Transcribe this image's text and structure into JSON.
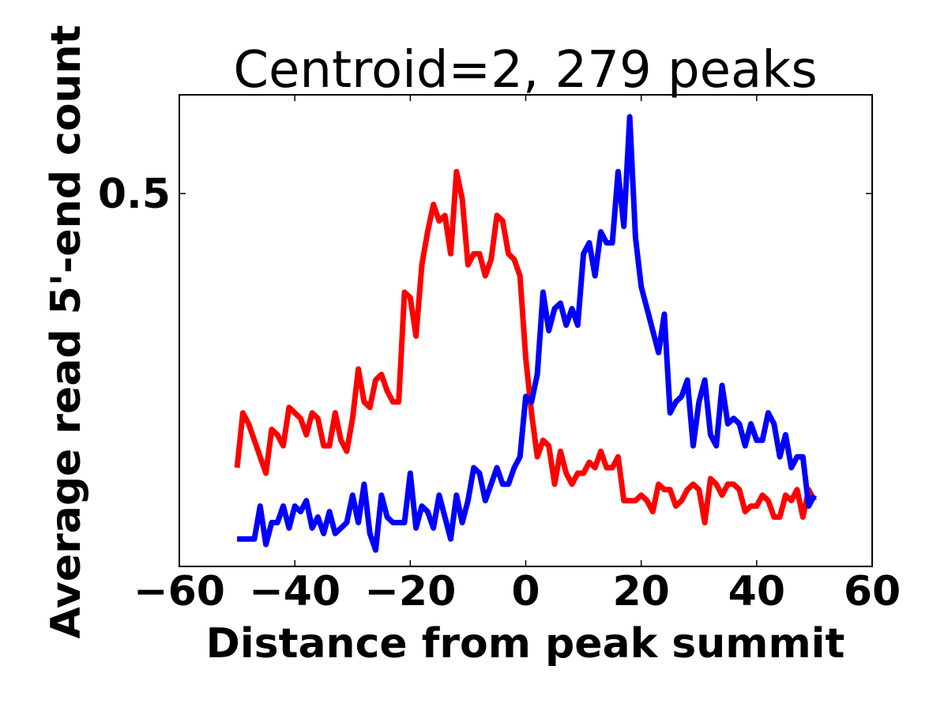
{
  "chart_data": {
    "type": "line",
    "title": "Centroid=2, 279 peaks",
    "xlabel": "Distance from peak summit",
    "ylabel": "Average read 5'-end count",
    "xlim": [
      -60,
      60
    ],
    "ylim": [
      -0.18,
      0.68
    ],
    "x_ticks": [
      -60,
      -40,
      -20,
      0,
      20,
      40,
      60
    ],
    "x_tick_labels": [
      "−60",
      "−40",
      "−20",
      "0",
      "20",
      "40",
      "60"
    ],
    "y_ticks": [
      0.5
    ],
    "y_tick_labels": [
      "0.5"
    ],
    "grid": false,
    "legend": "none",
    "x": [
      -50,
      -49,
      -48,
      -47,
      -46,
      -45,
      -44,
      -43,
      -42,
      -41,
      -40,
      -39,
      -38,
      -37,
      -36,
      -35,
      -34,
      -33,
      -32,
      -31,
      -30,
      -29,
      -28,
      -27,
      -26,
      -25,
      -24,
      -23,
      -22,
      -21,
      -20,
      -19,
      -18,
      -17,
      -16,
      -15,
      -14,
      -13,
      -12,
      -11,
      -10,
      -9,
      -8,
      -7,
      -6,
      -5,
      -4,
      -3,
      -2,
      -1,
      0,
      1,
      2,
      3,
      4,
      5,
      6,
      7,
      8,
      9,
      10,
      11,
      12,
      13,
      14,
      15,
      16,
      17,
      18,
      19,
      20,
      21,
      22,
      23,
      24,
      25,
      26,
      27,
      28,
      29,
      30,
      31,
      32,
      33,
      34,
      35,
      36,
      37,
      38,
      39,
      40,
      41,
      42,
      43,
      44,
      45,
      46,
      47,
      48,
      49,
      50
    ],
    "series": [
      {
        "color": "#ff0000",
        "values": [
          0.0,
          0.1,
          0.08,
          0.05,
          0.02,
          -0.01,
          0.07,
          0.06,
          0.04,
          0.11,
          0.1,
          0.09,
          0.06,
          0.1,
          0.09,
          0.04,
          0.04,
          0.1,
          0.05,
          0.03,
          0.09,
          0.18,
          0.12,
          0.11,
          0.16,
          0.17,
          0.14,
          0.12,
          0.12,
          0.32,
          0.31,
          0.24,
          0.37,
          0.43,
          0.48,
          0.45,
          0.46,
          0.39,
          0.54,
          0.49,
          0.37,
          0.39,
          0.39,
          0.35,
          0.38,
          0.46,
          0.45,
          0.39,
          0.38,
          0.35,
          0.2,
          0.1,
          0.02,
          0.05,
          0.04,
          -0.03,
          0.03,
          -0.01,
          -0.03,
          -0.01,
          -0.01,
          0.01,
          0.0,
          0.03,
          0.0,
          0.0,
          0.02,
          -0.06,
          -0.06,
          -0.06,
          -0.05,
          -0.06,
          -0.08,
          -0.03,
          -0.04,
          -0.04,
          -0.07,
          -0.06,
          -0.04,
          -0.03,
          -0.04,
          -0.1,
          -0.02,
          -0.03,
          -0.05,
          -0.03,
          -0.03,
          -0.04,
          -0.08,
          -0.07,
          -0.07,
          -0.05,
          -0.06,
          -0.09,
          -0.09,
          -0.05,
          -0.06,
          -0.04,
          -0.09,
          -0.04,
          -0.06
        ]
      },
      {
        "color": "#0000ff",
        "values": [
          -0.13,
          -0.13,
          -0.13,
          -0.13,
          -0.07,
          -0.14,
          -0.1,
          -0.1,
          -0.07,
          -0.11,
          -0.07,
          -0.08,
          -0.06,
          -0.11,
          -0.09,
          -0.12,
          -0.08,
          -0.12,
          -0.11,
          -0.1,
          -0.05,
          -0.1,
          -0.03,
          -0.12,
          -0.15,
          -0.05,
          -0.09,
          -0.1,
          -0.1,
          -0.1,
          -0.01,
          -0.11,
          -0.07,
          -0.08,
          -0.11,
          -0.05,
          -0.09,
          -0.13,
          -0.05,
          -0.1,
          -0.06,
          0.0,
          -0.01,
          -0.06,
          -0.03,
          0.0,
          -0.03,
          -0.03,
          0.0,
          0.02,
          0.13,
          0.12,
          0.17,
          0.32,
          0.25,
          0.29,
          0.3,
          0.26,
          0.29,
          0.26,
          0.39,
          0.41,
          0.35,
          0.43,
          0.41,
          0.41,
          0.54,
          0.44,
          0.64,
          0.42,
          0.33,
          0.29,
          0.25,
          0.21,
          0.28,
          0.1,
          0.12,
          0.13,
          0.16,
          0.04,
          0.12,
          0.16,
          0.06,
          0.04,
          0.15,
          0.08,
          0.09,
          0.08,
          0.04,
          0.08,
          0.05,
          0.05,
          0.1,
          0.08,
          0.02,
          0.06,
          0.0,
          0.02,
          0.02,
          -0.07,
          -0.05
        ]
      }
    ]
  }
}
